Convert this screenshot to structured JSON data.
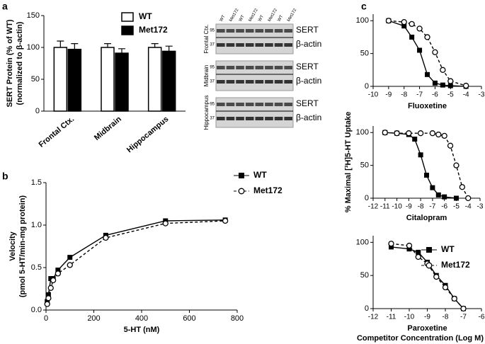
{
  "panel_labels": [
    "a",
    "b",
    "c"
  ],
  "blot": {
    "lanes": [
      "WT",
      "Met172",
      "WT",
      "Met172",
      "WT",
      "Met172",
      "WT",
      "Met172"
    ],
    "regions": [
      "Frontal Ctx.",
      "Midbrain",
      "Hippocampus"
    ],
    "bands": [
      "SERT",
      "β-actin"
    ],
    "markers": [
      "95",
      "37"
    ]
  },
  "chart_data": [
    {
      "type": "bar",
      "y_label": [
        "SERT Protein (% of WT)",
        "(normalized to β-actin)"
      ],
      "categories": [
        "Frontal Ctx.",
        "Midbrain",
        "Hippocampus"
      ],
      "series": [
        {
          "name": "WT",
          "color": "#ffffff",
          "values": [
            100,
            100,
            100
          ],
          "errors": [
            10,
            6,
            6
          ]
        },
        {
          "name": "Met172",
          "color": "#000000",
          "values": [
            97,
            91,
            94
          ],
          "errors": [
            9,
            7,
            8
          ]
        }
      ],
      "ylim": [
        0,
        150
      ],
      "yticks": [
        0,
        50,
        100,
        150
      ],
      "legend": "top"
    },
    {
      "type": "line",
      "x_label": "5-HT (nM)",
      "y_label": [
        "Velocity",
        "(pmol 5-HT/min-mg protein)"
      ],
      "x": [
        5,
        10,
        20,
        30,
        50,
        100,
        250,
        500,
        750
      ],
      "series": [
        {
          "name": "WT",
          "marker": "square",
          "dash": false,
          "values": [
            0.1,
            0.18,
            0.37,
            0.37,
            0.47,
            0.62,
            0.88,
            1.05,
            1.06
          ]
        },
        {
          "name": "Met172",
          "marker": "circle",
          "dash": true,
          "values": [
            0.07,
            0.14,
            0.26,
            0.35,
            0.43,
            0.53,
            0.85,
            1.02,
            1.05
          ]
        }
      ],
      "xlim": [
        0,
        800
      ],
      "xticks": [
        0,
        200,
        400,
        600,
        800
      ],
      "ylim": [
        0,
        1.5
      ],
      "yticks": [
        {
          "value": 0,
          "label": "0.0"
        },
        {
          "value": 0.5,
          "label": "0.5"
        },
        {
          "value": 1,
          "label": "1.0"
        },
        {
          "value": 1.5,
          "label": "1.5"
        }
      ],
      "legend": "right"
    },
    {
      "type": "line",
      "x_label": "Fluoxetine",
      "series": [
        {
          "marker": "square",
          "dash": false,
          "x": [
            -9,
            -8,
            -7.5,
            -7,
            -6.5,
            -6,
            -5.5,
            -5,
            -4
          ],
          "values": [
            100,
            92,
            75,
            55,
            18,
            5,
            2,
            1,
            0
          ]
        },
        {
          "marker": "circle",
          "dash": true,
          "x": [
            -9,
            -8,
            -7.5,
            -7,
            -6.5,
            -6,
            -5.5,
            -5,
            -4
          ],
          "values": [
            100,
            98,
            95,
            88,
            75,
            52,
            25,
            8,
            1
          ]
        }
      ],
      "xlim": [
        -10,
        -3
      ],
      "xticks": [
        -10,
        -9,
        -8,
        -7,
        -6,
        -5,
        -4,
        -3
      ],
      "ylim": [
        0,
        110
      ],
      "yticks": [
        0,
        50,
        100
      ]
    },
    {
      "type": "line",
      "x_label": "Citalopram",
      "y_label": [
        "% Maximal [³H]5-HT Uptake"
      ],
      "series": [
        {
          "marker": "square",
          "dash": false,
          "x": [
            -11,
            -10,
            -9,
            -8.5,
            -8,
            -7.5,
            -7,
            -6.5,
            -6,
            -5
          ],
          "values": [
            100,
            99,
            97,
            90,
            66,
            35,
            16,
            5,
            2,
            0
          ]
        },
        {
          "marker": "circle",
          "dash": true,
          "x": [
            -11,
            -10,
            -9,
            -8,
            -7,
            -6.5,
            -6,
            -5.5,
            -5,
            -4.5,
            -4
          ],
          "values": [
            100,
            99,
            99,
            99,
            99,
            97,
            95,
            80,
            50,
            17,
            0
          ]
        }
      ],
      "xlim": [
        -12,
        -3
      ],
      "xticks": [
        -12,
        -11,
        -10,
        -9,
        -8,
        -7,
        -6,
        -5,
        -4,
        -3
      ],
      "ylim": [
        0,
        110
      ],
      "yticks": [
        0,
        50,
        100
      ]
    },
    {
      "type": "line",
      "x_label": "Paroxetine",
      "x_axis_title": "Competitor Concentration (Log M)",
      "series": [
        {
          "name": "WT",
          "marker": "square",
          "dash": false,
          "x": [
            -11,
            -10,
            -9.5,
            -9,
            -8.5,
            -8,
            -7.5,
            -7
          ],
          "values": [
            93,
            90,
            85,
            70,
            50,
            35,
            15,
            0
          ]
        },
        {
          "name": "Met172",
          "marker": "circle",
          "dash": true,
          "x": [
            -11,
            -10,
            -9.5,
            -9,
            -8.5,
            -8,
            -7.5,
            -7
          ],
          "values": [
            98,
            95,
            78,
            68,
            48,
            32,
            15,
            0
          ]
        }
      ],
      "xlim": [
        -12,
        -6
      ],
      "xticks": [
        -12,
        -11,
        -10,
        -9,
        -8,
        -7,
        -6
      ],
      "ylim": [
        0,
        110
      ],
      "yticks": [
        0,
        50,
        100
      ],
      "legend": "inside"
    }
  ]
}
